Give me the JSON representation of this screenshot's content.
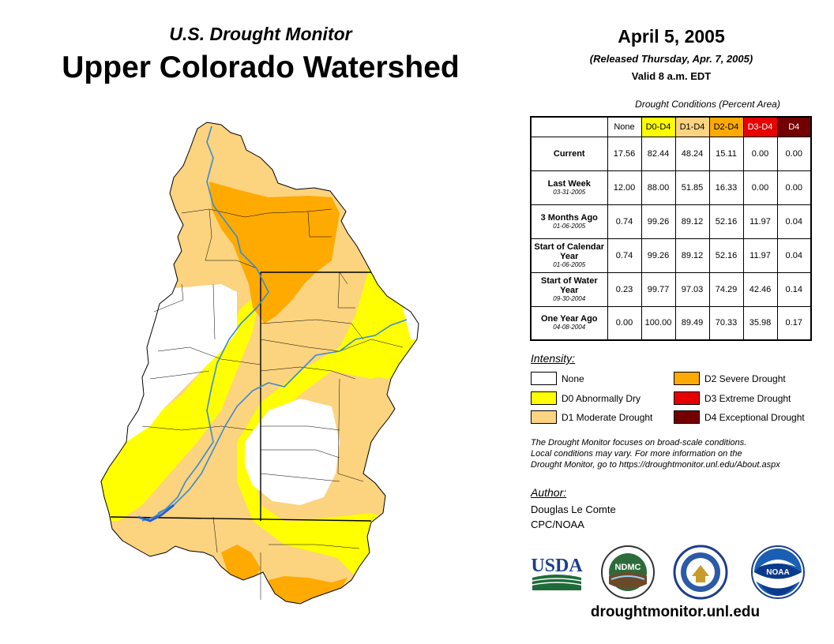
{
  "header": {
    "subtitle": "U.S. Drought Monitor",
    "title": "Upper Colorado Watershed",
    "date": "April 5, 2005",
    "released": "(Released Thursday, Apr. 7, 2005)",
    "valid": "Valid 8 a.m. EDT"
  },
  "table": {
    "caption": "Drought Conditions (Percent Area)",
    "columns": [
      {
        "label": "None",
        "color": "#ffffff",
        "text_color": "#000000"
      },
      {
        "label": "D0-D4",
        "color": "#ffff00",
        "text_color": "#000000"
      },
      {
        "label": "D1-D4",
        "color": "#fcd37f",
        "text_color": "#000000"
      },
      {
        "label": "D2-D4",
        "color": "#ffaa00",
        "text_color": "#000000"
      },
      {
        "label": "D3-D4",
        "color": "#e60000",
        "text_color": "#ffffff"
      },
      {
        "label": "D4",
        "color": "#730000",
        "text_color": "#ffffff"
      }
    ],
    "rows": [
      {
        "label": "Current",
        "date": "",
        "values": [
          "17.56",
          "82.44",
          "48.24",
          "15.11",
          "0.00",
          "0.00"
        ]
      },
      {
        "label": "Last Week",
        "date": "03-31-2005",
        "values": [
          "12.00",
          "88.00",
          "51.85",
          "16.33",
          "0.00",
          "0.00"
        ]
      },
      {
        "label": "3 Months Ago",
        "date": "01-06-2005",
        "values": [
          "0.74",
          "99.26",
          "89.12",
          "52.16",
          "11.97",
          "0.04"
        ]
      },
      {
        "label": "Start of Calendar Year",
        "date": "01-06-2005",
        "values": [
          "0.74",
          "99.26",
          "89.12",
          "52.16",
          "11.97",
          "0.04"
        ]
      },
      {
        "label": "Start of Water Year",
        "date": "09-30-2004",
        "values": [
          "0.23",
          "99.77",
          "97.03",
          "74.29",
          "42.46",
          "0.14"
        ]
      },
      {
        "label": "One Year Ago",
        "date": "04-08-2004",
        "values": [
          "0.00",
          "100.00",
          "89.49",
          "70.33",
          "35.98",
          "0.17"
        ]
      }
    ]
  },
  "legend": {
    "title": "Intensity:",
    "items": [
      {
        "label": "None",
        "color": "#ffffff"
      },
      {
        "label": "D0 Abnormally Dry",
        "color": "#ffff00"
      },
      {
        "label": "D1 Moderate Drought",
        "color": "#fcd37f"
      },
      {
        "label": "D2 Severe Drought",
        "color": "#ffaa00"
      },
      {
        "label": "D3 Extreme Drought",
        "color": "#e60000"
      },
      {
        "label": "D4 Exceptional Drought",
        "color": "#730000"
      }
    ]
  },
  "note": {
    "line1": "The Drought Monitor focuses on broad-scale conditions.",
    "line2": "Local conditions may vary. For more information on the",
    "line3": "Drought Monitor, go to https://droughtmonitor.unl.edu/About.aspx"
  },
  "author": {
    "label": "Author:",
    "name": "Douglas Le Comte",
    "org": "CPC/NOAA"
  },
  "logos": {
    "usda": "USDA",
    "ndmc": "NDMC",
    "noaa": "NOAA"
  },
  "website": "droughtmonitor.unl.edu",
  "map_colors": {
    "none": "#ffffff",
    "d0": "#ffff00",
    "d1": "#fcd37f",
    "d2": "#ffaa00",
    "river": "#3a8ad6",
    "boundary": "#000000"
  }
}
